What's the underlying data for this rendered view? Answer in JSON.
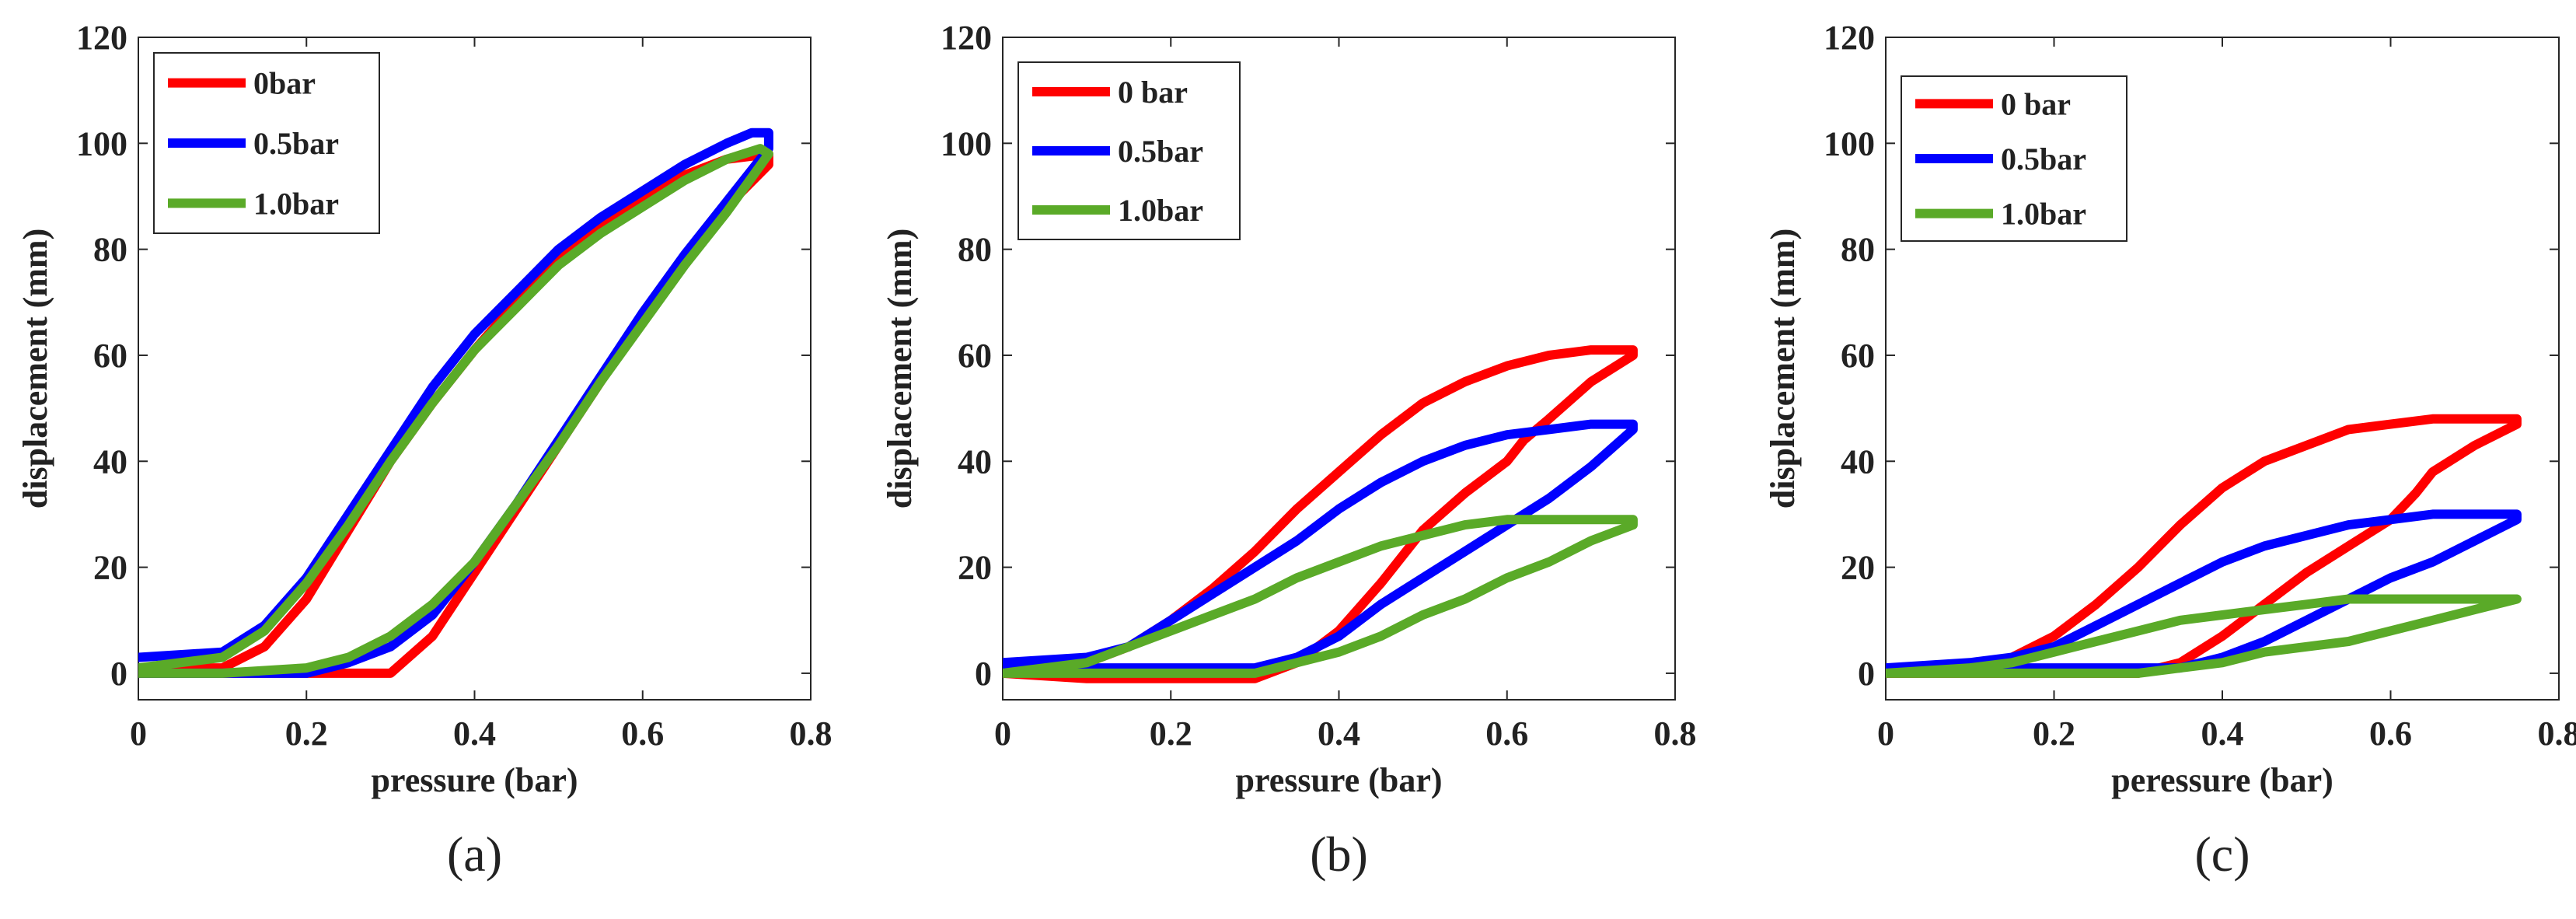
{
  "figure": {
    "panels": [
      {
        "caption": "(a)"
      },
      {
        "caption": "(b)"
      },
      {
        "caption": "(c)"
      }
    ]
  },
  "chart_data": [
    {
      "type": "line",
      "caption": "(a)",
      "xlabel": "pressure (bar)",
      "ylabel": "displacement (mm)",
      "xlim": [
        0,
        0.8
      ],
      "ylim": [
        -5,
        120
      ],
      "xticks": [
        0,
        0.2,
        0.4,
        0.6,
        0.8
      ],
      "xtick_labels": [
        "0",
        "0.2",
        "0.4",
        "0.6",
        "0.8"
      ],
      "yticks": [
        0,
        20,
        40,
        60,
        80,
        100,
        120
      ],
      "ytick_labels": [
        "0",
        "20",
        "40",
        "60",
        "80",
        "100",
        "120"
      ],
      "legend_position": "top-left",
      "series": [
        {
          "name": "0bar",
          "color": "#ff0000",
          "x": [
            0,
            0.1,
            0.15,
            0.2,
            0.25,
            0.3,
            0.35,
            0.4,
            0.45,
            0.5,
            0.55,
            0.6,
            0.65,
            0.7,
            0.75,
            0.75,
            0.7,
            0.65,
            0.6,
            0.55,
            0.5,
            0.45,
            0.4,
            0.35,
            0.3,
            0.2,
            0.1,
            0
          ],
          "y": [
            1,
            1,
            5,
            14,
            27,
            40,
            51,
            61,
            70,
            78,
            84,
            89,
            94,
            97,
            98,
            96,
            88,
            78,
            67,
            55,
            43,
            31,
            19,
            7,
            0,
            0,
            0,
            0
          ]
        },
        {
          "name": "0.5bar",
          "color": "#0000ff",
          "x": [
            0,
            0.1,
            0.15,
            0.2,
            0.25,
            0.3,
            0.35,
            0.4,
            0.45,
            0.5,
            0.55,
            0.6,
            0.65,
            0.7,
            0.73,
            0.75,
            0.75,
            0.7,
            0.65,
            0.6,
            0.55,
            0.5,
            0.45,
            0.4,
            0.35,
            0.3,
            0.25,
            0.2,
            0.1,
            0
          ],
          "y": [
            3,
            4,
            9,
            18,
            30,
            42,
            54,
            64,
            72,
            80,
            86,
            91,
            96,
            100,
            102,
            102,
            99,
            89,
            79,
            68,
            56,
            44,
            32,
            21,
            11,
            5,
            2,
            0,
            0,
            0
          ]
        },
        {
          "name": "1.0bar",
          "color": "#5aaa28",
          "x": [
            0,
            0.1,
            0.15,
            0.2,
            0.25,
            0.3,
            0.35,
            0.4,
            0.45,
            0.5,
            0.55,
            0.6,
            0.65,
            0.7,
            0.74,
            0.75,
            0.7,
            0.65,
            0.6,
            0.55,
            0.5,
            0.45,
            0.4,
            0.35,
            0.3,
            0.25,
            0.2,
            0.1,
            0
          ],
          "y": [
            1,
            3,
            8,
            17,
            28,
            40,
            51,
            61,
            69,
            77,
            83,
            88,
            93,
            97,
            99,
            98,
            87,
            77,
            66,
            55,
            43,
            32,
            21,
            13,
            7,
            3,
            1,
            0,
            0
          ]
        }
      ]
    },
    {
      "type": "line",
      "caption": "(b)",
      "xlabel": "pressure (bar)",
      "ylabel": "displacement (mm)",
      "xlim": [
        0,
        0.8
      ],
      "ylim": [
        -5,
        120
      ],
      "xticks": [
        0,
        0.2,
        0.4,
        0.6,
        0.8
      ],
      "xtick_labels": [
        "0",
        "0.2",
        "0.4",
        "0.6",
        "0.8"
      ],
      "yticks": [
        0,
        20,
        40,
        60,
        80,
        100,
        120
      ],
      "ytick_labels": [
        "0",
        "20",
        "40",
        "60",
        "80",
        "100",
        "120"
      ],
      "legend_position": "top-left",
      "series": [
        {
          "name": "0 bar",
          "color": "#ff0000",
          "x": [
            0,
            0.1,
            0.15,
            0.2,
            0.25,
            0.3,
            0.35,
            0.4,
            0.45,
            0.5,
            0.55,
            0.6,
            0.65,
            0.7,
            0.75,
            0.75,
            0.7,
            0.65,
            0.62,
            0.6,
            0.55,
            0.5,
            0.45,
            0.4,
            0.35,
            0.3,
            0.2,
            0.1,
            0
          ],
          "y": [
            1,
            2,
            5,
            10,
            16,
            23,
            31,
            38,
            45,
            51,
            55,
            58,
            60,
            61,
            61,
            60,
            55,
            48,
            44,
            40,
            34,
            27,
            17,
            8,
            2,
            -1,
            -1,
            -1,
            0
          ]
        },
        {
          "name": "0.5bar",
          "color": "#0000ff",
          "x": [
            0,
            0.1,
            0.15,
            0.2,
            0.25,
            0.3,
            0.35,
            0.4,
            0.45,
            0.5,
            0.55,
            0.6,
            0.65,
            0.7,
            0.75,
            0.75,
            0.7,
            0.65,
            0.6,
            0.55,
            0.5,
            0.45,
            0.4,
            0.35,
            0.3,
            0.2,
            0.1,
            0
          ],
          "y": [
            2,
            3,
            5,
            10,
            15,
            20,
            25,
            31,
            36,
            40,
            43,
            45,
            46,
            47,
            47,
            46,
            39,
            33,
            28,
            23,
            18,
            13,
            7,
            3,
            1,
            1,
            1,
            1
          ]
        },
        {
          "name": "1.0bar",
          "color": "#5aaa28",
          "x": [
            0,
            0.1,
            0.15,
            0.2,
            0.25,
            0.3,
            0.35,
            0.4,
            0.45,
            0.5,
            0.55,
            0.6,
            0.65,
            0.7,
            0.75,
            0.75,
            0.7,
            0.65,
            0.6,
            0.55,
            0.5,
            0.45,
            0.4,
            0.35,
            0.3,
            0.2,
            0.1,
            0
          ],
          "y": [
            0,
            2,
            5,
            8,
            11,
            14,
            18,
            21,
            24,
            26,
            28,
            29,
            29,
            29,
            29,
            28,
            25,
            21,
            18,
            14,
            11,
            7,
            4,
            2,
            0,
            0,
            0,
            0
          ]
        }
      ]
    },
    {
      "type": "line",
      "caption": "(c)",
      "xlabel": "peressure (bar)",
      "ylabel": "displacement (mm)",
      "xlim": [
        0,
        0.8
      ],
      "ylim": [
        -5,
        120
      ],
      "xticks": [
        0,
        0.2,
        0.4,
        0.6,
        0.8
      ],
      "xtick_labels": [
        "0",
        "0.2",
        "0.4",
        "0.6",
        "0.8"
      ],
      "yticks": [
        0,
        20,
        40,
        60,
        80,
        100,
        120
      ],
      "ytick_labels": [
        "0",
        "20",
        "40",
        "60",
        "80",
        "100",
        "120"
      ],
      "legend_position": "top-left",
      "series": [
        {
          "name": "0 bar",
          "color": "#ff0000",
          "x": [
            0,
            0.1,
            0.15,
            0.2,
            0.25,
            0.3,
            0.35,
            0.4,
            0.45,
            0.5,
            0.55,
            0.6,
            0.65,
            0.7,
            0.75,
            0.75,
            0.7,
            0.65,
            0.63,
            0.6,
            0.55,
            0.5,
            0.45,
            0.4,
            0.35,
            0.3,
            0.2,
            0.1,
            0
          ],
          "y": [
            0,
            1,
            3,
            7,
            13,
            20,
            28,
            35,
            40,
            43,
            46,
            47,
            48,
            48,
            48,
            47,
            43,
            38,
            34,
            29,
            24,
            19,
            13,
            7,
            2,
            0,
            0,
            0,
            0
          ]
        },
        {
          "name": "0.5bar",
          "color": "#0000ff",
          "x": [
            0,
            0.1,
            0.15,
            0.2,
            0.25,
            0.3,
            0.35,
            0.4,
            0.45,
            0.5,
            0.55,
            0.6,
            0.65,
            0.7,
            0.75,
            0.75,
            0.7,
            0.65,
            0.6,
            0.55,
            0.5,
            0.45,
            0.4,
            0.35,
            0.3,
            0.2,
            0.1,
            0
          ],
          "y": [
            1,
            2,
            3,
            5,
            9,
            13,
            17,
            21,
            24,
            26,
            28,
            29,
            30,
            30,
            30,
            29,
            25,
            21,
            18,
            14,
            10,
            6,
            3,
            1,
            1,
            1,
            1,
            1
          ]
        },
        {
          "name": "1.0bar",
          "color": "#5aaa28",
          "x": [
            0,
            0.1,
            0.15,
            0.2,
            0.25,
            0.3,
            0.35,
            0.4,
            0.45,
            0.5,
            0.55,
            0.6,
            0.65,
            0.7,
            0.75,
            0.75,
            0.7,
            0.65,
            0.6,
            0.55,
            0.5,
            0.45,
            0.4,
            0.35,
            0.3,
            0.2,
            0.1,
            0
          ],
          "y": [
            0,
            1,
            2,
            4,
            6,
            8,
            10,
            11,
            12,
            13,
            14,
            14,
            14,
            14,
            14,
            14,
            12,
            10,
            8,
            6,
            5,
            4,
            2,
            1,
            0,
            0,
            0,
            0
          ]
        }
      ]
    }
  ]
}
